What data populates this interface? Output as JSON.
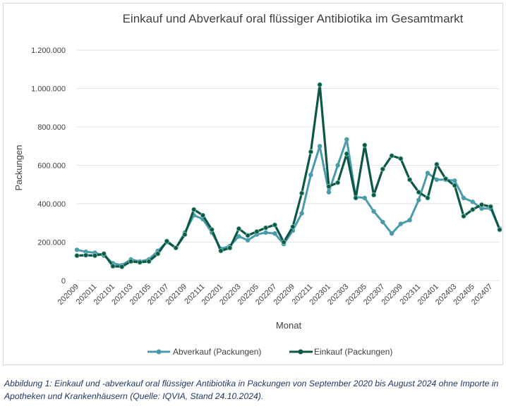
{
  "chart_data": {
    "type": "line",
    "title": "Einkauf und Abverkauf oral flüssiger Antibiotika im Gesamtmarkt",
    "xlabel": "Monat",
    "ylabel": "Packungen",
    "ylim": [
      0,
      1200000
    ],
    "yticks": [
      0,
      200000,
      400000,
      600000,
      800000,
      1000000,
      1200000
    ],
    "ytick_labels": [
      "0",
      "200.000",
      "400.000",
      "600.000",
      "800.000",
      "1.000.000",
      "1.200.000"
    ],
    "grid": true,
    "legend_position": "bottom",
    "categories": [
      "202009",
      "202010",
      "202011",
      "202012",
      "202101",
      "202102",
      "202103",
      "202104",
      "202105",
      "202106",
      "202107",
      "202108",
      "202109",
      "202110",
      "202111",
      "202112",
      "202201",
      "202202",
      "202203",
      "202204",
      "202205",
      "202206",
      "202207",
      "202208",
      "202209",
      "202210",
      "202211",
      "202212",
      "202301",
      "202302",
      "202303",
      "202304",
      "202305",
      "202306",
      "202307",
      "202308",
      "202309",
      "202310",
      "202311",
      "202312",
      "202401",
      "202402",
      "202403",
      "202404",
      "202405",
      "202406",
      "202407",
      "202408"
    ],
    "xtick_labels": [
      "202009",
      "202011",
      "202101",
      "202103",
      "202105",
      "202107",
      "202109",
      "202111",
      "202201",
      "202203",
      "202205",
      "202207",
      "202209",
      "202211",
      "202301",
      "202303",
      "202305",
      "202307",
      "202309",
      "202311",
      "202401",
      "202403",
      "202405",
      "202407"
    ],
    "series": [
      {
        "name": "Abverkauf (Packungen)",
        "color": "#4a9bab",
        "values": [
          160000,
          150000,
          145000,
          130000,
          90000,
          80000,
          110000,
          100000,
          110000,
          155000,
          200000,
          170000,
          250000,
          340000,
          320000,
          250000,
          165000,
          180000,
          230000,
          210000,
          240000,
          250000,
          245000,
          190000,
          260000,
          350000,
          550000,
          700000,
          460000,
          600000,
          735000,
          435000,
          430000,
          360000,
          305000,
          245000,
          295000,
          315000,
          420000,
          560000,
          525000,
          525000,
          520000,
          430000,
          410000,
          375000,
          375000,
          270000
        ]
      },
      {
        "name": "Einkauf (Packungen)",
        "color": "#0d5747",
        "values": [
          130000,
          132000,
          130000,
          140000,
          75000,
          72000,
          100000,
          95000,
          100000,
          140000,
          205000,
          170000,
          240000,
          370000,
          340000,
          265000,
          155000,
          170000,
          270000,
          235000,
          255000,
          275000,
          290000,
          200000,
          280000,
          455000,
          670000,
          1020000,
          490000,
          510000,
          660000,
          430000,
          705000,
          445000,
          580000,
          650000,
          635000,
          525000,
          460000,
          430000,
          605000,
          530000,
          495000,
          335000,
          370000,
          395000,
          385000,
          265000
        ]
      }
    ]
  },
  "caption": "Abbildung 1: Einkauf und -abverkauf oral flüssiger Antibiotika in Packungen von September 2020 bis August 2024 ohne Importe in Apotheken und Krankenhäusern (Quelle: IQVIA, Stand 24.10.2024)."
}
